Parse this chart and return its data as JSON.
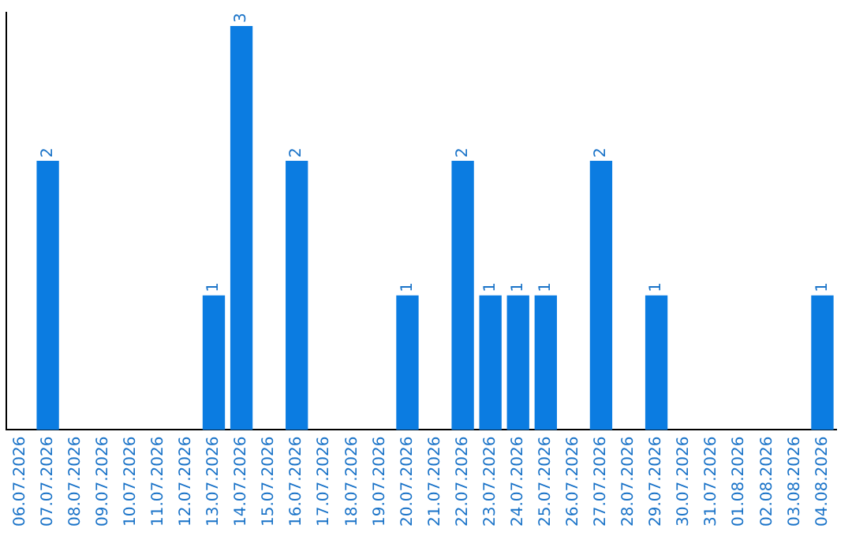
{
  "chart_data": {
    "type": "bar",
    "categories": [
      "06.07.2026",
      "07.07.2026",
      "08.07.2026",
      "09.07.2026",
      "10.07.2026",
      "11.07.2026",
      "12.07.2026",
      "13.07.2026",
      "14.07.2026",
      "15.07.2026",
      "16.07.2026",
      "17.07.2026",
      "18.07.2026",
      "19.07.2026",
      "20.07.2026",
      "21.07.2026",
      "22.07.2026",
      "23.07.2026",
      "24.07.2026",
      "25.07.2026",
      "26.07.2026",
      "27.07.2026",
      "28.07.2026",
      "29.07.2026",
      "30.07.2026",
      "31.07.2026",
      "01.08.2026",
      "02.08.2026",
      "03.08.2026",
      "04.08.2026"
    ],
    "values": [
      0,
      2,
      0,
      0,
      0,
      0,
      0,
      1,
      3,
      0,
      2,
      0,
      0,
      0,
      1,
      0,
      2,
      1,
      1,
      1,
      0,
      2,
      0,
      1,
      0,
      0,
      0,
      0,
      0,
      1
    ],
    "value_labels": [
      null,
      "2",
      null,
      null,
      null,
      null,
      null,
      "1",
      "3",
      null,
      "2",
      null,
      null,
      null,
      "1",
      null,
      "2",
      "1",
      "1",
      "1",
      null,
      "2",
      null,
      "1",
      null,
      null,
      null,
      null,
      null,
      "1"
    ],
    "color": "#0b7ce1",
    "ylim": [
      0,
      3.1
    ],
    "tick_labels": "x",
    "grid": false
  }
}
